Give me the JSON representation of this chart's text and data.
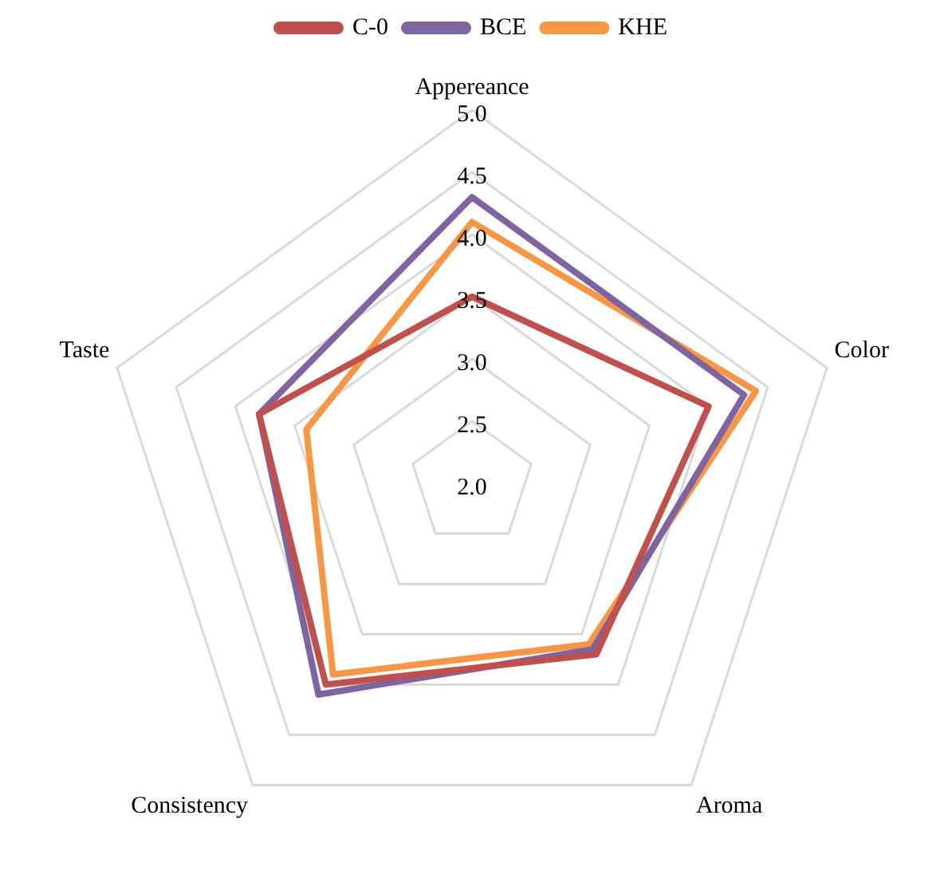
{
  "chart_data": {
    "type": "radar",
    "categories": [
      "Appereance",
      "Color",
      "Aroma",
      "Consistency",
      "Taste"
    ],
    "series": [
      {
        "name": "C-0",
        "color": "#c0504d",
        "values": [
          3.5,
          4.0,
          3.7,
          4.0,
          3.8
        ]
      },
      {
        "name": "BCE",
        "color": "#8064a2",
        "values": [
          4.3,
          4.3,
          3.65,
          4.1,
          3.8
        ]
      },
      {
        "name": "KHE",
        "color": "#f79646",
        "values": [
          4.1,
          4.4,
          3.6,
          3.9,
          3.4
        ]
      }
    ],
    "ylim": [
      2.0,
      5.0
    ],
    "yticks": [
      {
        "value": 2,
        "label": "2.0"
      },
      {
        "value": 2.5,
        "label": "2.5"
      },
      {
        "value": 3,
        "label": "3.0"
      },
      {
        "value": 3.5,
        "label": "3.5"
      },
      {
        "value": 4,
        "label": "4.0"
      },
      {
        "value": 4.5,
        "label": "4.5"
      },
      {
        "value": 5,
        "label": "5.0"
      }
    ],
    "grid": true,
    "legend": "top",
    "marker": "none",
    "line_style": "solid"
  }
}
